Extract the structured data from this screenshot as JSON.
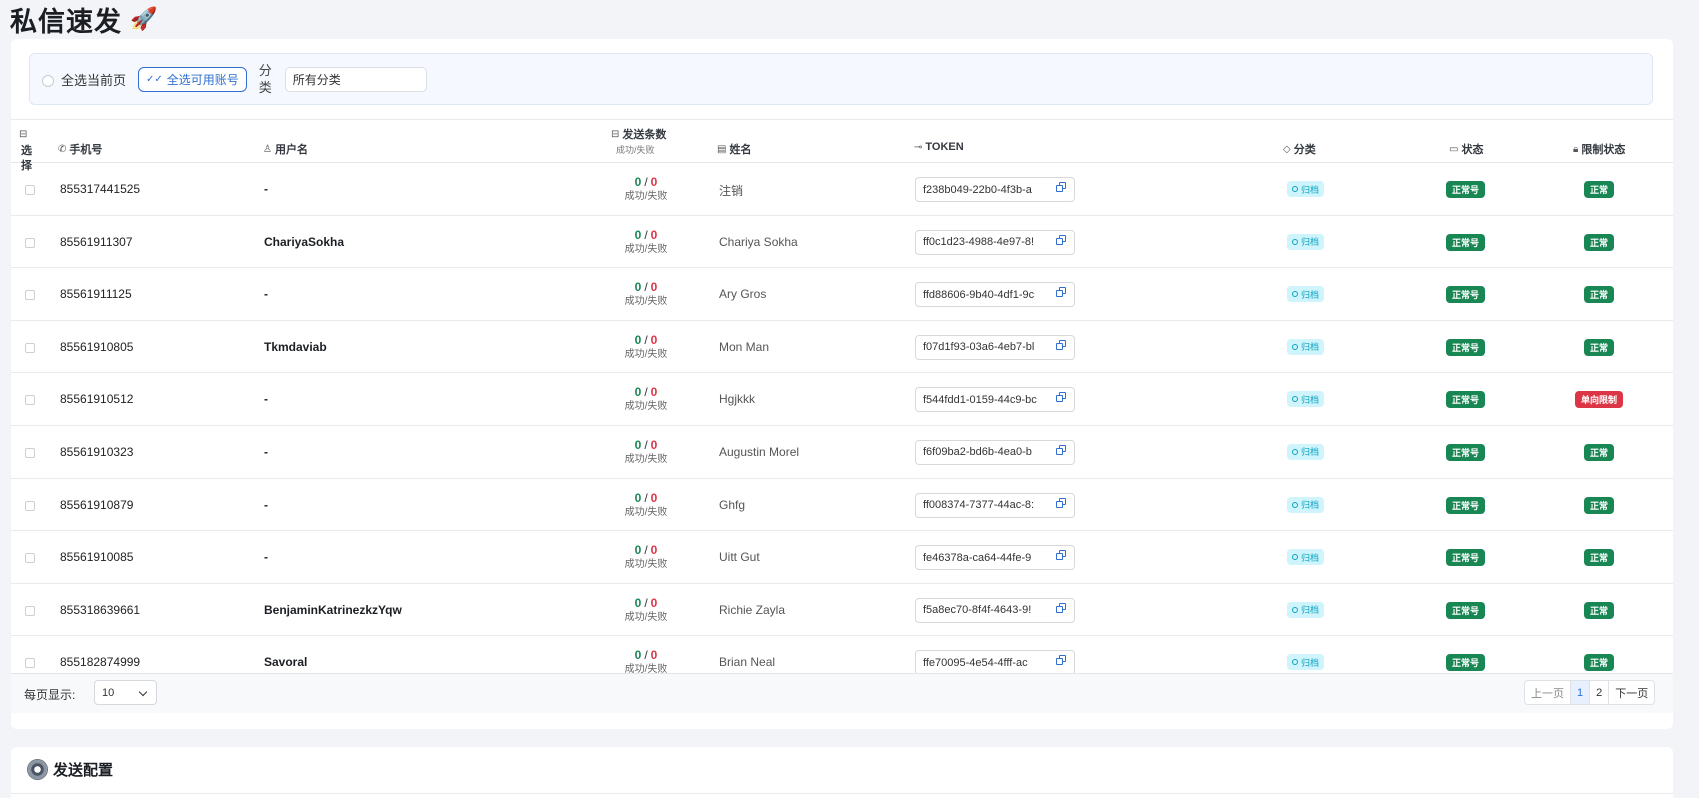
{
  "page": {
    "title": "私信速发",
    "title_icon": "🚀"
  },
  "filter": {
    "select_page_label": "全选当前页",
    "select_available_label": "全选可用账号",
    "category_label": "分类",
    "category_value": "所有分类"
  },
  "table": {
    "headers": {
      "select": "选择",
      "phone": "手机号",
      "username": "用户名",
      "send_count": "发送条数",
      "send_count_sub": "成功/失败",
      "name": "姓名",
      "token": "TOKEN",
      "category": "分类",
      "status": "状态",
      "limit": "限制状态"
    },
    "rows": [
      {
        "phone": "855317441525",
        "username": "-",
        "success": "0",
        "fail": "0",
        "count_label": "成功/失败",
        "name": "注销",
        "token": "f238b049-22b0-4f3b-a",
        "category": "归档",
        "status": "正常号",
        "limit": "正常",
        "limit_type": "ok"
      },
      {
        "phone": "85561911307",
        "username": "ChariyaSokha",
        "success": "0",
        "fail": "0",
        "count_label": "成功/失败",
        "name": "Chariya Sokha",
        "token": "ff0c1d23-4988-4e97-8!",
        "category": "归档",
        "status": "正常号",
        "limit": "正常",
        "limit_type": "ok"
      },
      {
        "phone": "85561911125",
        "username": "-",
        "success": "0",
        "fail": "0",
        "count_label": "成功/失败",
        "name": "Ary Gros",
        "token": "ffd88606-9b40-4df1-9c",
        "category": "归档",
        "status": "正常号",
        "limit": "正常",
        "limit_type": "ok"
      },
      {
        "phone": "85561910805",
        "username": "Tkmdaviab",
        "success": "0",
        "fail": "0",
        "count_label": "成功/失败",
        "name": "Mon Man",
        "token": "f07d1f93-03a6-4eb7-bl",
        "category": "归档",
        "status": "正常号",
        "limit": "正常",
        "limit_type": "ok"
      },
      {
        "phone": "85561910512",
        "username": "-",
        "success": "0",
        "fail": "0",
        "count_label": "成功/失败",
        "name": "Hgjkkk",
        "token": "f544fdd1-0159-44c9-bc",
        "category": "归档",
        "status": "正常号",
        "limit": "单向限制",
        "limit_type": "bad"
      },
      {
        "phone": "85561910323",
        "username": "-",
        "success": "0",
        "fail": "0",
        "count_label": "成功/失败",
        "name": "Augustin Morel",
        "token": "f6f09ba2-bd6b-4ea0-b",
        "category": "归档",
        "status": "正常号",
        "limit": "正常",
        "limit_type": "ok"
      },
      {
        "phone": "85561910879",
        "username": "-",
        "success": "0",
        "fail": "0",
        "count_label": "成功/失败",
        "name": "Ghfg",
        "token": "ff008374-7377-44ac-8:",
        "category": "归档",
        "status": "正常号",
        "limit": "正常",
        "limit_type": "ok"
      },
      {
        "phone": "85561910085",
        "username": "-",
        "success": "0",
        "fail": "0",
        "count_label": "成功/失败",
        "name": "Uitt Gut",
        "token": "fe46378a-ca64-44fe-9",
        "category": "归档",
        "status": "正常号",
        "limit": "正常",
        "limit_type": "ok"
      },
      {
        "phone": "855318639661",
        "username": "BenjaminKatrinezkzYqw",
        "success": "0",
        "fail": "0",
        "count_label": "成功/失败",
        "name": "Richie Zayla",
        "token": "f5a8ec70-8f4f-4643-9!",
        "category": "归档",
        "status": "正常号",
        "limit": "正常",
        "limit_type": "ok"
      },
      {
        "phone": "855182874999",
        "username": "Savoral",
        "success": "0",
        "fail": "0",
        "count_label": "成功/失败",
        "name": "Brian Neal",
        "token": "ffe70095-4e54-4fff-ac",
        "category": "归档",
        "status": "正常号",
        "limit": "正常",
        "limit_type": "ok"
      }
    ]
  },
  "pagination": {
    "per_page_label": "每页显示:",
    "per_page_value": "10",
    "prev": "上一页",
    "pages": [
      "1",
      "2"
    ],
    "current": "1",
    "next": "下一页"
  },
  "config": {
    "title": "发送配置"
  },
  "colors": {
    "accent": "#2f6fd1",
    "success": "#198754",
    "danger": "#dc3545",
    "info": "#0aa2c0"
  }
}
